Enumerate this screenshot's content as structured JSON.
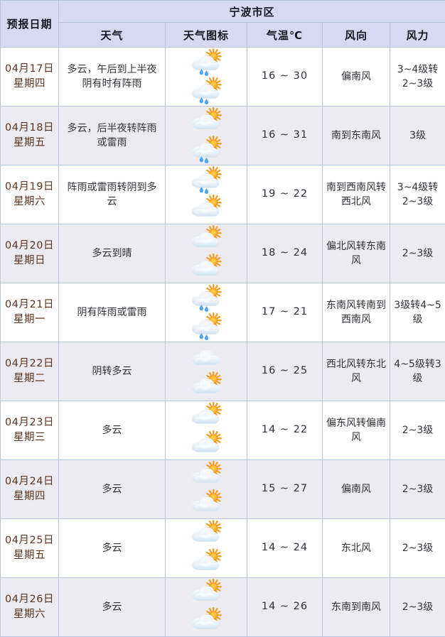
{
  "header": {
    "date_col": "预报日期",
    "region": "宁波市区",
    "columns": [
      "天气",
      "天气图标",
      "气温℃",
      "风向",
      "风力"
    ]
  },
  "colors": {
    "header_bg": "#d8d8f2",
    "alt_row_bg": "#ebebf1",
    "border": "#b9c4e0",
    "date_text": "#5c3420",
    "body_text": "#33333a",
    "sun": "#f89b1c",
    "cloud": "#d7e6f4",
    "raindrop": "#4da6ea"
  },
  "chart_data": {
    "type": "table",
    "title": "宁波市区",
    "columns": [
      "预报日期",
      "天气",
      "天气图标",
      "气温℃",
      "风向",
      "风力"
    ],
    "rows": [
      {
        "date": "04月17日",
        "weekday": "星期四",
        "weather": "多云，午后到上半夜阴有时有阵雨",
        "icons": [
          "sun-cloud-rain",
          "sun-cloud-rain"
        ],
        "temp": "16 ~ 30",
        "wind_dir": "偏南风",
        "wind_force": "3~4级转2~3级"
      },
      {
        "date": "04月18日",
        "weekday": "星期五",
        "weather": "多云，后半夜转阵雨或雷雨",
        "icons": [
          "sun-cloud",
          "sun-cloud-rain"
        ],
        "temp": "16 ~ 31",
        "wind_dir": "南到东南风",
        "wind_force": "3级"
      },
      {
        "date": "04月19日",
        "weekday": "星期六",
        "weather": "阵雨或雷雨转阴到多云",
        "icons": [
          "sun-cloud-rain",
          "sun-cloud"
        ],
        "temp": "19 ~ 22",
        "wind_dir": "南到西南风转西北风",
        "wind_force": "3~4级转2~3级"
      },
      {
        "date": "04月20日",
        "weekday": "星期日",
        "weather": "多云到晴",
        "icons": [
          "sun-cloud",
          "sun-cloud"
        ],
        "temp": "18 ~ 24",
        "wind_dir": "偏北风转东南风",
        "wind_force": "2~3级"
      },
      {
        "date": "04月21日",
        "weekday": "星期一",
        "weather": "阴有阵雨或雷雨",
        "icons": [
          "sun-cloud-rain",
          "sun-cloud-rain"
        ],
        "temp": "17 ~ 21",
        "wind_dir": "东南风转南到西南风",
        "wind_force": "3级转4~5级"
      },
      {
        "date": "04月22日",
        "weekday": "星期二",
        "weather": "阴转多云",
        "icons": [
          "cloud",
          "sun-cloud"
        ],
        "temp": "16 ~ 25",
        "wind_dir": "西北风转东北风",
        "wind_force": "4~5级转3级"
      },
      {
        "date": "04月23日",
        "weekday": "星期三",
        "weather": "多云",
        "icons": [
          "sun-cloud",
          "sun-cloud"
        ],
        "temp": "14 ~ 22",
        "wind_dir": "偏东风转偏南风",
        "wind_force": "2~3级"
      },
      {
        "date": "04月24日",
        "weekday": "星期四",
        "weather": "多云",
        "icons": [
          "sun-cloud",
          "sun-cloud"
        ],
        "temp": "15 ~ 27",
        "wind_dir": "偏南风",
        "wind_force": "2~3级"
      },
      {
        "date": "04月25日",
        "weekday": "星期五",
        "weather": "多云",
        "icons": [
          "sun-cloud",
          "sun-cloud"
        ],
        "temp": "14 ~ 24",
        "wind_dir": "东北风",
        "wind_force": "2~3级"
      },
      {
        "date": "04月26日",
        "weekday": "星期六",
        "weather": "多云",
        "icons": [
          "sun-cloud",
          "sun-cloud"
        ],
        "temp": "14 ~ 26",
        "wind_dir": "东南到南风",
        "wind_force": "2~3级"
      }
    ]
  }
}
